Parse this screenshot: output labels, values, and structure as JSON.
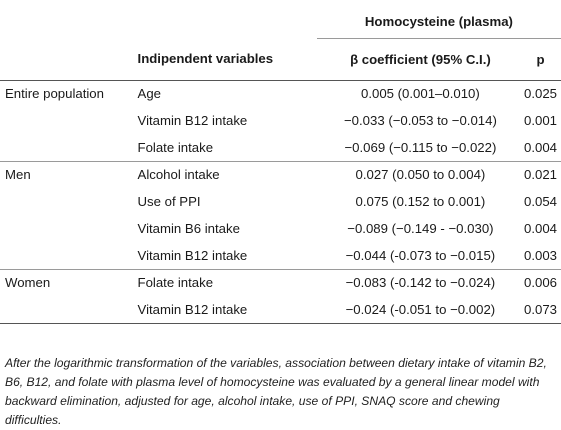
{
  "table": {
    "group_header": "Homocysteine (plasma)",
    "columns": {
      "group": "",
      "variable": "Indipendent variables",
      "beta": "β coefficient (95% C.I.)",
      "p": "p"
    },
    "rows": [
      {
        "group": "Entire population",
        "variable": "Age",
        "beta": "0.005 (0.001–0.010)",
        "p": "0.025"
      },
      {
        "group": "",
        "variable": "Vitamin B12 intake",
        "beta": "−0.033 (−0.053 to −0.014)",
        "p": "0.001"
      },
      {
        "group": "",
        "variable": "Folate intake",
        "beta": "−0.069 (−0.115 to −0.022)",
        "p": "0.004"
      },
      {
        "group": "Men",
        "variable": "Alcohol intake",
        "beta": "0.027 (0.050 to 0.004)",
        "p": "0.021"
      },
      {
        "group": "",
        "variable": "Use of PPI",
        "beta": "0.075 (0.152 to 0.001)",
        "p": "0.054"
      },
      {
        "group": "",
        "variable": "Vitamin B6 intake",
        "beta": "−0.089 (−0.149 - −0.030)",
        "p": "0.004"
      },
      {
        "group": "",
        "variable": "Vitamin B12 intake",
        "beta": "−0.044 (-0.073 to −0.015)",
        "p": "0.003"
      },
      {
        "group": "Women",
        "variable": "Folate intake",
        "beta": "−0.083 (-0.142 to −0.024)",
        "p": "0.006"
      },
      {
        "group": "",
        "variable": "Vitamin B12 intake",
        "beta": "−0.024 (-0.051 to −0.002)",
        "p": "0.073"
      }
    ]
  },
  "caption": "After the logarithmic transformation of the variables, association between dietary intake of vitamin B2, B6, B12, and folate with plasma level of homocysteine was evaluated by a general linear model with backward elimination, adjusted for age, alcohol intake, use of PPI, SNAQ score and chewing difficulties."
}
